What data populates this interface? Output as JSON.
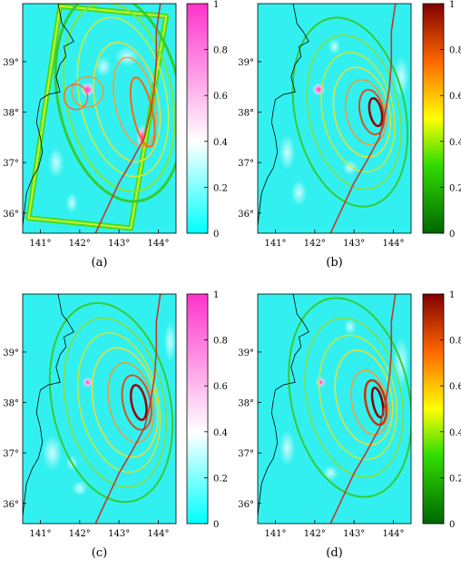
{
  "figure": {
    "panels": [
      {
        "caption": "(a)",
        "x_ticks": [
          "141°",
          "142°",
          "143°",
          "144°"
        ],
        "y_ticks": [
          "39°",
          "38°",
          "37°",
          "36°"
        ],
        "colorbar": {
          "scheme": "cyan-white-magenta",
          "ticks": [
            "1",
            "0.8",
            "0.6",
            "0.4",
            "0.2",
            "0"
          ]
        }
      },
      {
        "caption": "(b)",
        "x_ticks": [
          "141°",
          "142°",
          "143°",
          "144°"
        ],
        "y_ticks": [
          "39°",
          "38°",
          "37°",
          "36°"
        ],
        "colorbar": {
          "scheme": "green-yellow-red",
          "ticks": [
            "1",
            "0.8",
            "0.6",
            "0.4",
            "0.2",
            "0"
          ]
        }
      },
      {
        "caption": "(c)",
        "x_ticks": [
          "141°",
          "142°",
          "143°",
          "144°"
        ],
        "y_ticks": [
          "39°",
          "38°",
          "37°",
          "36°"
        ],
        "colorbar": {
          "scheme": "cyan-white-magenta",
          "ticks": [
            "1",
            "0.8",
            "0.6",
            "0.4",
            "0.2",
            "0"
          ]
        }
      },
      {
        "caption": "(d)",
        "x_ticks": [
          "141°",
          "142°",
          "143°",
          "144°"
        ],
        "y_ticks": [
          "39°",
          "38°",
          "37°",
          "36°"
        ],
        "colorbar": {
          "scheme": "green-yellow-red",
          "ticks": [
            "1",
            "0.8",
            "0.6",
            "0.4",
            "0.2",
            "0"
          ]
        }
      }
    ],
    "colors": {
      "background": "#33f0f0",
      "coast": "#000000",
      "trench": "#c0392b",
      "magenta_scale": [
        "#33f0f0",
        "#ffffff",
        "#ff33cc"
      ],
      "heat_scale": [
        "#006600",
        "#33cc00",
        "#ffff00",
        "#ff6600",
        "#800000"
      ]
    }
  }
}
